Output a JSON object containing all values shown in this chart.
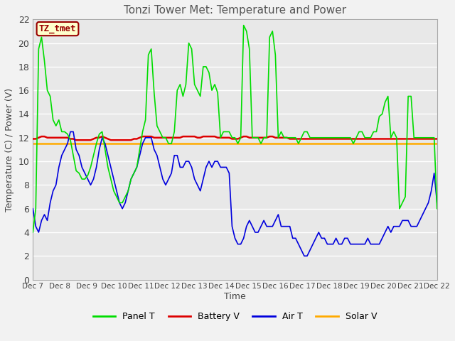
{
  "title": "Tonzi Tower Met: Temperature and Power",
  "ylabel": "Temperature (C) / Power (V)",
  "xlabel": "Time",
  "ylim": [
    0,
    22
  ],
  "annotation_text": "TZ_tmet",
  "annotation_fg": "#990000",
  "annotation_bg": "#ffffcc",
  "plot_bg": "#e8e8e8",
  "fig_bg": "#f2f2f2",
  "grid_color": "#ffffff",
  "title_color": "#555555",
  "tick_labels": [
    "Dec 7",
    "Dec 8",
    "Dec 9",
    "Dec 10",
    "Dec 11",
    "Dec 12",
    "Dec 13",
    "Dec 14",
    "Dec 15",
    "Dec 16",
    "Dec 17",
    "Dec 18",
    "Dec 19",
    "Dec 20",
    "Dec 21",
    "Dec 22"
  ],
  "legend": [
    {
      "label": "Panel T",
      "color": "#00dd00"
    },
    {
      "label": "Battery V",
      "color": "#dd0000"
    },
    {
      "label": "Air T",
      "color": "#0000dd"
    },
    {
      "label": "Solar V",
      "color": "#ffaa00"
    }
  ],
  "panel_t": [
    4.0,
    6.0,
    19.5,
    20.5,
    18.5,
    16.0,
    15.5,
    13.5,
    13.0,
    13.5,
    12.5,
    12.5,
    12.3,
    11.8,
    10.5,
    9.2,
    9.0,
    8.5,
    8.5,
    8.8,
    9.5,
    10.5,
    11.5,
    12.3,
    12.5,
    11.0,
    9.5,
    8.5,
    7.5,
    7.0,
    6.5,
    6.5,
    7.0,
    7.5,
    8.5,
    9.0,
    9.5,
    11.0,
    12.5,
    13.5,
    19.0,
    19.5,
    15.8,
    13.0,
    12.5,
    12.0,
    12.0,
    11.5,
    11.5,
    12.5,
    16.0,
    16.5,
    15.5,
    16.5,
    20.0,
    19.5,
    16.5,
    16.0,
    15.5,
    18.0,
    18.0,
    17.5,
    16.0,
    16.5,
    15.8,
    12.0,
    12.5,
    12.5,
    12.5,
    12.0,
    12.0,
    11.5,
    12.0,
    21.5,
    21.0,
    19.5,
    12.0,
    12.0,
    12.0,
    11.5,
    12.0,
    12.0,
    20.5,
    21.0,
    19.0,
    12.0,
    12.5,
    12.0,
    12.0,
    12.0,
    12.0,
    12.0,
    11.5,
    12.0,
    12.5,
    12.5,
    12.0,
    12.0,
    12.0,
    12.0,
    12.0,
    12.0,
    12.0,
    12.0,
    12.0,
    12.0,
    12.0,
    12.0,
    12.0,
    12.0,
    12.0,
    11.5,
    12.0,
    12.5,
    12.5,
    12.0,
    12.0,
    12.0,
    12.5,
    12.5,
    13.8,
    14.0,
    15.0,
    15.5,
    12.0,
    12.5,
    12.0,
    6.0,
    6.5,
    7.0,
    15.5,
    15.5,
    12.0,
    12.0,
    12.0,
    12.0,
    12.0,
    12.0,
    12.0,
    12.0,
    6.0
  ],
  "battery_v": [
    11.9,
    11.9,
    12.0,
    12.1,
    12.1,
    12.0,
    12.0,
    12.0,
    12.0,
    12.0,
    12.0,
    12.0,
    12.0,
    11.9,
    11.9,
    11.8,
    11.8,
    11.8,
    11.8,
    11.8,
    11.8,
    11.9,
    12.0,
    12.0,
    12.1,
    12.0,
    11.9,
    11.8,
    11.8,
    11.8,
    11.8,
    11.8,
    11.8,
    11.8,
    11.8,
    11.9,
    11.9,
    12.0,
    12.1,
    12.1,
    12.1,
    12.1,
    12.0,
    12.0,
    12.0,
    12.0,
    12.0,
    12.0,
    12.0,
    12.0,
    12.0,
    12.0,
    12.1,
    12.1,
    12.1,
    12.1,
    12.1,
    12.0,
    12.0,
    12.1,
    12.1,
    12.1,
    12.1,
    12.1,
    12.0,
    12.0,
    12.0,
    12.0,
    12.0,
    11.9,
    11.9,
    11.9,
    12.0,
    12.1,
    12.1,
    12.0,
    12.0,
    12.0,
    12.0,
    12.0,
    12.0,
    12.0,
    12.1,
    12.1,
    12.0,
    12.0,
    12.0,
    12.0,
    12.0,
    11.9,
    11.9,
    11.9,
    11.9,
    11.9,
    11.9,
    11.9,
    11.9,
    11.9,
    11.9,
    11.9,
    11.9,
    11.9,
    11.9,
    11.9,
    11.9,
    11.9,
    11.9,
    11.9,
    11.9,
    11.9,
    11.9,
    11.9,
    11.9,
    11.9,
    11.9,
    11.9,
    11.9,
    11.9,
    11.9,
    11.9,
    11.9,
    11.9,
    11.9,
    11.9,
    11.9,
    11.9,
    11.9,
    11.9,
    11.9,
    11.9,
    11.9,
    11.9,
    11.9,
    11.9,
    11.9,
    11.9,
    11.9,
    11.9,
    11.9,
    11.9,
    11.9
  ],
  "solar_v": [
    11.5,
    11.5,
    11.5,
    11.5,
    11.5,
    11.5,
    11.5,
    11.5,
    11.5,
    11.5,
    11.5,
    11.5,
    11.5,
    11.5,
    11.5,
    11.5,
    11.5,
    11.5,
    11.5,
    11.5,
    11.5,
    11.5,
    11.5,
    11.5,
    11.5,
    11.5,
    11.5,
    11.5,
    11.5,
    11.5,
    11.5,
    11.5,
    11.5,
    11.5,
    11.5,
    11.5,
    11.5,
    11.5,
    11.5,
    11.5,
    11.5,
    11.5,
    11.5,
    11.5,
    11.5,
    11.5,
    11.5,
    11.5,
    11.5,
    11.5,
    11.5,
    11.5,
    11.5,
    11.5,
    11.5,
    11.5,
    11.5,
    11.5,
    11.5,
    11.5,
    11.5,
    11.5,
    11.5,
    11.5,
    11.5,
    11.5,
    11.5,
    11.5,
    11.5,
    11.5,
    11.5,
    11.5,
    11.5,
    11.5,
    11.5,
    11.5,
    11.5,
    11.5,
    11.5,
    11.5,
    11.5,
    11.5,
    11.5,
    11.5,
    11.5,
    11.5,
    11.5,
    11.5,
    11.5,
    11.5,
    11.5,
    11.5,
    11.5,
    11.5,
    11.5,
    11.5,
    11.5,
    11.5,
    11.5,
    11.5,
    11.5,
    11.5,
    11.5,
    11.5,
    11.5,
    11.5,
    11.5,
    11.5,
    11.5,
    11.5,
    11.5,
    11.5,
    11.5,
    11.5,
    11.5,
    11.5,
    11.5,
    11.5,
    11.5,
    11.5,
    11.5,
    11.5,
    11.5,
    11.5,
    11.5,
    11.5,
    11.5,
    11.5,
    11.5,
    11.5,
    11.5,
    11.5,
    11.5,
    11.5,
    11.5,
    11.5,
    11.5,
    11.5,
    11.5,
    11.5,
    11.5
  ],
  "air_t": [
    6.0,
    4.5,
    4.0,
    5.0,
    5.5,
    5.0,
    6.5,
    7.5,
    8.0,
    9.5,
    10.5,
    11.0,
    11.5,
    12.5,
    12.5,
    11.0,
    10.5,
    9.5,
    9.0,
    8.5,
    8.0,
    8.5,
    9.5,
    11.0,
    12.0,
    11.5,
    10.5,
    9.5,
    8.5,
    7.5,
    6.5,
    6.0,
    6.5,
    7.5,
    8.5,
    9.0,
    9.5,
    10.5,
    11.5,
    12.0,
    12.0,
    12.0,
    11.0,
    10.5,
    9.5,
    8.5,
    8.0,
    8.5,
    9.0,
    10.5,
    10.5,
    9.5,
    9.5,
    10.0,
    10.0,
    9.5,
    8.5,
    8.0,
    7.5,
    8.5,
    9.5,
    10.0,
    9.5,
    10.0,
    10.0,
    9.5,
    9.5,
    9.5,
    9.0,
    4.5,
    3.5,
    3.0,
    3.0,
    3.5,
    4.5,
    5.0,
    4.5,
    4.0,
    4.0,
    4.5,
    5.0,
    4.5,
    4.5,
    4.5,
    5.0,
    5.5,
    4.5,
    4.5,
    4.5,
    4.5,
    3.5,
    3.5,
    3.0,
    2.5,
    2.0,
    2.0,
    2.5,
    3.0,
    3.5,
    4.0,
    3.5,
    3.5,
    3.0,
    3.0,
    3.0,
    3.5,
    3.0,
    3.0,
    3.5,
    3.5,
    3.0,
    3.0,
    3.0,
    3.0,
    3.0,
    3.0,
    3.5,
    3.0,
    3.0,
    3.0,
    3.0,
    3.5,
    4.0,
    4.5,
    4.0,
    4.5,
    4.5,
    4.5,
    5.0,
    5.0,
    5.0,
    4.5,
    4.5,
    4.5,
    5.0,
    5.5,
    6.0,
    6.5,
    7.5,
    9.0,
    6.5
  ]
}
